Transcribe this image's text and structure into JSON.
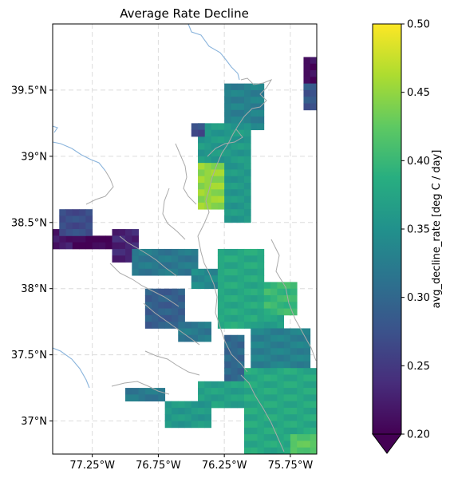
{
  "chart_data": {
    "type": "heatmap",
    "title": "Average Rate Decline",
    "x_ticks": [
      "77.25°W",
      "76.75°W",
      "76.25°W",
      "75.75°W"
    ],
    "x_tick_values": [
      -77.25,
      -76.75,
      -76.25,
      -75.75
    ],
    "y_ticks": [
      "37°N",
      "37.5°N",
      "38°N",
      "38.5°N",
      "39°N",
      "39.5°N"
    ],
    "y_tick_values": [
      37.0,
      37.5,
      38.0,
      38.5,
      39.0,
      39.5
    ],
    "xlim": [
      -77.55,
      -75.55
    ],
    "ylim": [
      36.75,
      40.0
    ],
    "grid": true,
    "grid_style": "dashed",
    "colormap": "viridis",
    "colorbar": {
      "label": "avg_decline_rate [deg C / day]",
      "range": [
        0.2,
        0.5
      ],
      "ticks": [
        "0.20",
        "0.25",
        "0.30",
        "0.35",
        "0.40",
        "0.45",
        "0.50"
      ],
      "tick_values": [
        0.2,
        0.25,
        0.3,
        0.35,
        0.4,
        0.45,
        0.5
      ],
      "extend": "min"
    },
    "cell_size_deg": 0.05,
    "regions": [
      {
        "lon": [
          -75.65,
          -75.55
        ],
        "lat": [
          39.5,
          39.75
        ],
        "value": 0.21
      },
      {
        "lon": [
          -75.65,
          -75.55
        ],
        "lat": [
          39.35,
          39.55
        ],
        "value": 0.28
      },
      {
        "lon": [
          -76.25,
          -75.95
        ],
        "lat": [
          39.2,
          39.55
        ],
        "value": 0.33
      },
      {
        "lon": [
          -76.45,
          -76.05
        ],
        "lat": [
          38.95,
          39.25
        ],
        "value": 0.36
      },
      {
        "lon": [
          -76.5,
          -76.4
        ],
        "lat": [
          39.15,
          39.25
        ],
        "value": 0.27
      },
      {
        "lon": [
          -76.45,
          -76.25
        ],
        "lat": [
          38.6,
          38.95
        ],
        "value": 0.45
      },
      {
        "lon": [
          -76.25,
          -76.05
        ],
        "lat": [
          38.5,
          38.95
        ],
        "value": 0.36
      },
      {
        "lon": [
          -77.55,
          -77.4
        ],
        "lat": [
          38.3,
          38.45
        ],
        "value": 0.22
      },
      {
        "lon": [
          -77.4,
          -77.1
        ],
        "lat": [
          38.3,
          38.4
        ],
        "value": 0.2
      },
      {
        "lon": [
          -77.5,
          -77.25
        ],
        "lat": [
          38.4,
          38.6
        ],
        "value": 0.27
      },
      {
        "lon": [
          -77.1,
          -76.9
        ],
        "lat": [
          38.2,
          38.45
        ],
        "value": 0.23
      },
      {
        "lon": [
          -76.95,
          -76.45
        ],
        "lat": [
          38.1,
          38.3
        ],
        "value": 0.32
      },
      {
        "lon": [
          -76.5,
          -76.3
        ],
        "lat": [
          38.0,
          38.15
        ],
        "value": 0.34
      },
      {
        "lon": [
          -76.3,
          -75.95
        ],
        "lat": [
          37.7,
          38.3
        ],
        "value": 0.38
      },
      {
        "lon": [
          -75.95,
          -75.7
        ],
        "lat": [
          37.8,
          38.05
        ],
        "value": 0.4
      },
      {
        "lon": [
          -76.0,
          -75.8
        ],
        "lat": [
          37.5,
          37.8
        ],
        "value": 0.37
      },
      {
        "lon": [
          -76.85,
          -76.55
        ],
        "lat": [
          37.7,
          38.0
        ],
        "value": 0.29
      },
      {
        "lon": [
          -76.6,
          -76.35
        ],
        "lat": [
          37.6,
          37.75
        ],
        "value": 0.32
      },
      {
        "lon": [
          -76.25,
          -76.1
        ],
        "lat": [
          37.3,
          37.65
        ],
        "value": 0.3
      },
      {
        "lon": [
          -76.05,
          -75.6
        ],
        "lat": [
          37.4,
          37.7
        ],
        "value": 0.33
      },
      {
        "lon": [
          -76.45,
          -76.1
        ],
        "lat": [
          37.1,
          37.3
        ],
        "value": 0.37
      },
      {
        "lon": [
          -77.0,
          -76.7
        ],
        "lat": [
          37.15,
          37.25
        ],
        "value": 0.32
      },
      {
        "lon": [
          -76.7,
          -76.35
        ],
        "lat": [
          36.95,
          37.15
        ],
        "value": 0.36
      },
      {
        "lon": [
          -76.1,
          -75.55
        ],
        "lat": [
          36.75,
          37.4
        ],
        "value": 0.38
      },
      {
        "lon": [
          -75.75,
          -75.55
        ],
        "lat": [
          36.75,
          36.9
        ],
        "value": 0.42
      }
    ]
  }
}
